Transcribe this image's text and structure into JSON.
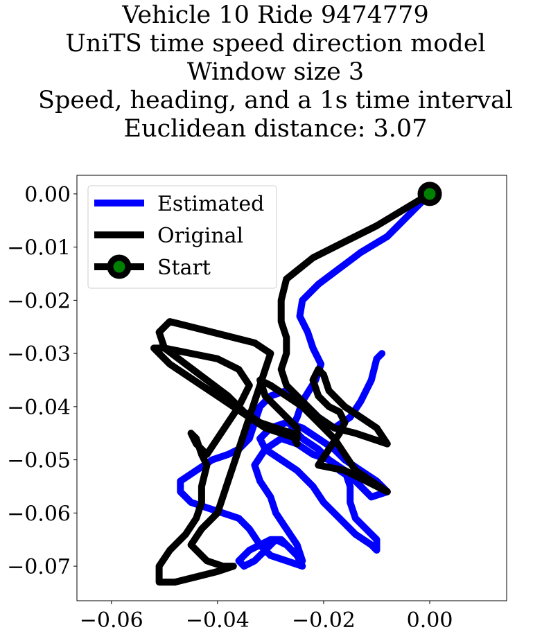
{
  "chart_data": {
    "type": "line",
    "title_lines": [
      "Vehicle 10 Ride 9474779",
      "UniTS time speed direction model",
      "Window size 3",
      "Speed, heading, and a 1s time interval",
      "Euclidean distance: 3.07"
    ],
    "xlabel": "",
    "ylabel": "",
    "xlim": [
      -0.0665,
      0.0145
    ],
    "ylim": [
      -0.0765,
      0.0035
    ],
    "xticks": [
      -0.06,
      -0.04,
      -0.02,
      0.0
    ],
    "xtick_labels": [
      "−0.06",
      "−0.04",
      "−0.02",
      "0.00"
    ],
    "yticks": [
      0.0,
      -0.01,
      -0.02,
      -0.03,
      -0.04,
      -0.05,
      -0.06,
      -0.07
    ],
    "ytick_labels": [
      "0.00",
      "−0.01",
      "−0.02",
      "−0.03",
      "−0.04",
      "−0.05",
      "−0.06",
      "−0.07"
    ],
    "grid": false,
    "legend_position": "top-left",
    "legend": [
      "Estimated",
      "Original",
      "Start"
    ],
    "series": [
      {
        "name": "Estimated",
        "color": "#0000ff",
        "points": [
          [
            0.0,
            0.0
          ],
          [
            -0.004,
            -0.004
          ],
          [
            -0.008,
            -0.008
          ],
          [
            -0.013,
            -0.011
          ],
          [
            -0.017,
            -0.014
          ],
          [
            -0.021,
            -0.017
          ],
          [
            -0.024,
            -0.02
          ],
          [
            -0.0245,
            -0.023
          ],
          [
            -0.023,
            -0.026
          ],
          [
            -0.022,
            -0.029
          ],
          [
            -0.0205,
            -0.032
          ],
          [
            -0.0215,
            -0.035
          ],
          [
            -0.024,
            -0.039
          ],
          [
            -0.025,
            -0.042
          ],
          [
            -0.026,
            -0.044
          ],
          [
            -0.024,
            -0.046
          ],
          [
            -0.021,
            -0.048
          ],
          [
            -0.019,
            -0.05
          ],
          [
            -0.017,
            -0.052
          ],
          [
            -0.014,
            -0.054
          ],
          [
            -0.011,
            -0.057
          ],
          [
            -0.008,
            -0.056
          ],
          [
            -0.01,
            -0.054
          ],
          [
            -0.013,
            -0.052
          ],
          [
            -0.016,
            -0.05
          ],
          [
            -0.018,
            -0.048
          ],
          [
            -0.021,
            -0.046
          ],
          [
            -0.024,
            -0.044
          ],
          [
            -0.027,
            -0.043
          ],
          [
            -0.03,
            -0.044
          ],
          [
            -0.032,
            -0.046
          ],
          [
            -0.031,
            -0.048
          ],
          [
            -0.028,
            -0.05
          ],
          [
            -0.025,
            -0.052
          ],
          [
            -0.022,
            -0.055
          ],
          [
            -0.02,
            -0.058
          ],
          [
            -0.017,
            -0.061
          ],
          [
            -0.014,
            -0.064
          ],
          [
            -0.011,
            -0.066
          ],
          [
            -0.01,
            -0.067
          ],
          [
            -0.01,
            -0.065
          ],
          [
            -0.012,
            -0.063
          ],
          [
            -0.014,
            -0.061
          ],
          [
            -0.015,
            -0.058
          ],
          [
            -0.015,
            -0.055
          ],
          [
            -0.016,
            -0.052
          ],
          [
            -0.019,
            -0.05
          ],
          [
            -0.022,
            -0.049
          ],
          [
            -0.025,
            -0.047
          ],
          [
            -0.028,
            -0.046
          ],
          [
            -0.031,
            -0.048
          ],
          [
            -0.033,
            -0.051
          ],
          [
            -0.032,
            -0.054
          ],
          [
            -0.03,
            -0.057
          ],
          [
            -0.029,
            -0.06
          ],
          [
            -0.027,
            -0.063
          ],
          [
            -0.025,
            -0.066
          ],
          [
            -0.024,
            -0.069
          ],
          [
            -0.026,
            -0.067
          ],
          [
            -0.028,
            -0.065
          ],
          [
            -0.03,
            -0.065
          ],
          [
            -0.032,
            -0.066
          ],
          [
            -0.034,
            -0.067
          ],
          [
            -0.036,
            -0.069
          ],
          [
            -0.035,
            -0.07
          ],
          [
            -0.033,
            -0.069
          ],
          [
            -0.031,
            -0.067
          ],
          [
            -0.029,
            -0.065
          ],
          [
            -0.027,
            -0.066
          ],
          [
            -0.025,
            -0.068
          ],
          [
            -0.024,
            -0.07
          ],
          [
            -0.027,
            -0.069
          ],
          [
            -0.03,
            -0.068
          ],
          [
            -0.032,
            -0.066
          ],
          [
            -0.034,
            -0.063
          ],
          [
            -0.036,
            -0.061
          ],
          [
            -0.039,
            -0.06
          ],
          [
            -0.042,
            -0.059
          ],
          [
            -0.045,
            -0.058
          ],
          [
            -0.047,
            -0.056
          ],
          [
            -0.047,
            -0.054
          ],
          [
            -0.044,
            -0.052
          ],
          [
            -0.041,
            -0.05
          ],
          [
            -0.038,
            -0.049
          ],
          [
            -0.036,
            -0.048
          ],
          [
            -0.034,
            -0.046
          ],
          [
            -0.033,
            -0.043
          ],
          [
            -0.032,
            -0.04
          ],
          [
            -0.03,
            -0.038
          ],
          [
            -0.027,
            -0.037
          ],
          [
            -0.024,
            -0.039
          ],
          [
            -0.021,
            -0.042
          ],
          [
            -0.018,
            -0.044
          ],
          [
            -0.015,
            -0.042
          ],
          [
            -0.013,
            -0.039
          ],
          [
            -0.011,
            -0.035
          ],
          [
            -0.01,
            -0.031
          ],
          [
            -0.009,
            -0.03
          ]
        ]
      },
      {
        "name": "Original",
        "color": "#000000",
        "points": [
          [
            0.0,
            0.0
          ],
          [
            -0.005,
            -0.003
          ],
          [
            -0.01,
            -0.006
          ],
          [
            -0.016,
            -0.009
          ],
          [
            -0.022,
            -0.012
          ],
          [
            -0.027,
            -0.016
          ],
          [
            -0.028,
            -0.02
          ],
          [
            -0.028,
            -0.024
          ],
          [
            -0.027,
            -0.027
          ],
          [
            -0.027,
            -0.03
          ],
          [
            -0.028,
            -0.033
          ],
          [
            -0.027,
            -0.036
          ],
          [
            -0.024,
            -0.039
          ],
          [
            -0.021,
            -0.042
          ],
          [
            -0.018,
            -0.044
          ],
          [
            -0.014,
            -0.045
          ],
          [
            -0.011,
            -0.046
          ],
          [
            -0.008,
            -0.047
          ],
          [
            -0.01,
            -0.044
          ],
          [
            -0.013,
            -0.042
          ],
          [
            -0.016,
            -0.04
          ],
          [
            -0.019,
            -0.037
          ],
          [
            -0.02,
            -0.034
          ],
          [
            -0.021,
            -0.033
          ],
          [
            -0.022,
            -0.035
          ],
          [
            -0.021,
            -0.038
          ],
          [
            -0.019,
            -0.04
          ],
          [
            -0.017,
            -0.041
          ],
          [
            -0.016,
            -0.043
          ],
          [
            -0.017,
            -0.045
          ],
          [
            -0.019,
            -0.048
          ],
          [
            -0.021,
            -0.051
          ],
          [
            -0.016,
            -0.052
          ],
          [
            -0.012,
            -0.054
          ],
          [
            -0.008,
            -0.056
          ],
          [
            -0.011,
            -0.054
          ],
          [
            -0.014,
            -0.052
          ],
          [
            -0.016,
            -0.049
          ],
          [
            -0.018,
            -0.046
          ],
          [
            -0.021,
            -0.043
          ],
          [
            -0.024,
            -0.04
          ],
          [
            -0.027,
            -0.038
          ],
          [
            -0.03,
            -0.036
          ],
          [
            -0.032,
            -0.035
          ],
          [
            -0.031,
            -0.038
          ],
          [
            -0.028,
            -0.041
          ],
          [
            -0.025,
            -0.044
          ],
          [
            -0.025,
            -0.046
          ],
          [
            -0.028,
            -0.045
          ],
          [
            -0.031,
            -0.044
          ],
          [
            -0.034,
            -0.042
          ],
          [
            -0.037,
            -0.04
          ],
          [
            -0.04,
            -0.038
          ],
          [
            -0.043,
            -0.036
          ],
          [
            -0.046,
            -0.034
          ],
          [
            -0.049,
            -0.032
          ],
          [
            -0.052,
            -0.029
          ],
          [
            -0.05,
            -0.029
          ],
          [
            -0.045,
            -0.03
          ],
          [
            -0.04,
            -0.031
          ],
          [
            -0.036,
            -0.033
          ],
          [
            -0.034,
            -0.036
          ],
          [
            -0.036,
            -0.04
          ],
          [
            -0.038,
            -0.043
          ],
          [
            -0.04,
            -0.046
          ],
          [
            -0.042,
            -0.049
          ],
          [
            -0.044,
            -0.047
          ],
          [
            -0.045,
            -0.045
          ],
          [
            -0.044,
            -0.046
          ],
          [
            -0.043,
            -0.049
          ],
          [
            -0.042,
            -0.051
          ],
          [
            -0.043,
            -0.055
          ],
          [
            -0.043,
            -0.058
          ],
          [
            -0.044,
            -0.061
          ],
          [
            -0.046,
            -0.064
          ],
          [
            -0.049,
            -0.067
          ],
          [
            -0.051,
            -0.07
          ],
          [
            -0.051,
            -0.073
          ],
          [
            -0.048,
            -0.073
          ],
          [
            -0.044,
            -0.072
          ],
          [
            -0.04,
            -0.071
          ],
          [
            -0.037,
            -0.07
          ],
          [
            -0.039,
            -0.07
          ],
          [
            -0.042,
            -0.069
          ],
          [
            -0.045,
            -0.066
          ],
          [
            -0.043,
            -0.063
          ],
          [
            -0.04,
            -0.06
          ],
          [
            -0.039,
            -0.057
          ],
          [
            -0.038,
            -0.054
          ],
          [
            -0.037,
            -0.051
          ],
          [
            -0.036,
            -0.048
          ],
          [
            -0.035,
            -0.045
          ],
          [
            -0.034,
            -0.042
          ],
          [
            -0.033,
            -0.039
          ],
          [
            -0.032,
            -0.036
          ],
          [
            -0.031,
            -0.033
          ],
          [
            -0.03,
            -0.03
          ],
          [
            -0.033,
            -0.028
          ],
          [
            -0.037,
            -0.027
          ],
          [
            -0.041,
            -0.026
          ],
          [
            -0.045,
            -0.025
          ],
          [
            -0.049,
            -0.024
          ],
          [
            -0.051,
            -0.026
          ],
          [
            -0.05,
            -0.029
          ],
          [
            -0.046,
            -0.032
          ],
          [
            -0.042,
            -0.035
          ],
          [
            -0.038,
            -0.038
          ],
          [
            -0.035,
            -0.041
          ],
          [
            -0.032,
            -0.043
          ],
          [
            -0.029,
            -0.044
          ],
          [
            -0.026,
            -0.045
          ],
          [
            -0.025,
            -0.047
          ]
        ]
      }
    ],
    "start_point": [
      0.0,
      0.0
    ],
    "start_marker_fill": "#008000",
    "start_marker_edge": "#000000"
  }
}
